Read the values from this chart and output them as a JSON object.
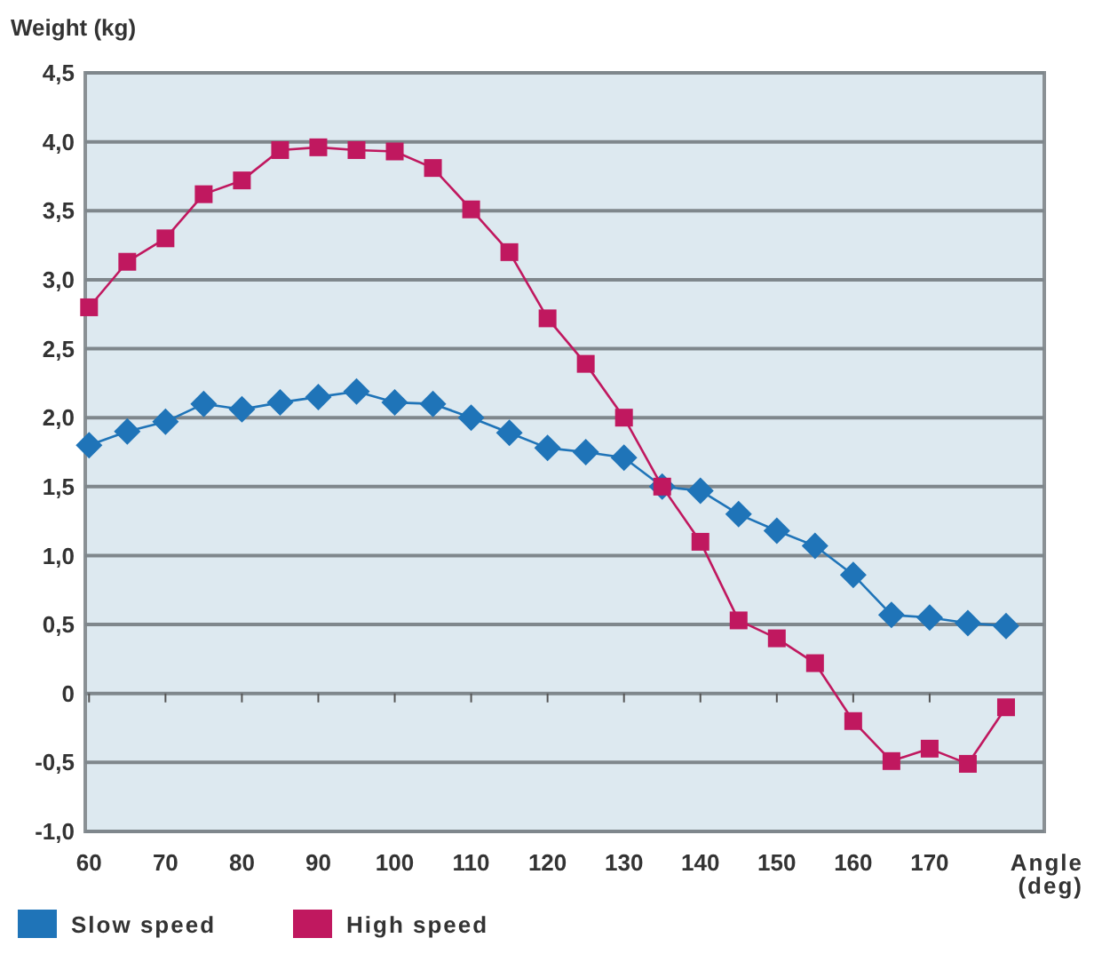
{
  "chart_data": {
    "type": "line",
    "xlabel": "Angle (deg)",
    "ylabel": "Weight (kg)",
    "x": [
      60,
      65,
      70,
      75,
      80,
      85,
      90,
      95,
      100,
      105,
      110,
      115,
      120,
      125,
      130,
      135,
      140,
      145,
      150,
      155,
      160,
      165,
      170,
      175,
      180
    ],
    "series": [
      {
        "name": "Slow speed",
        "color": "#1f74b8",
        "marker": "diamond",
        "values": [
          1.8,
          1.9,
          1.97,
          2.1,
          2.06,
          2.11,
          2.15,
          2.19,
          2.11,
          2.1,
          2.0,
          1.89,
          1.78,
          1.75,
          1.71,
          1.5,
          1.47,
          1.3,
          1.18,
          1.07,
          0.86,
          0.57,
          0.55,
          0.51,
          0.49
        ]
      },
      {
        "name": "High speed",
        "color": "#c0185f",
        "marker": "square",
        "values": [
          2.8,
          3.13,
          3.3,
          3.62,
          3.72,
          3.94,
          3.96,
          3.94,
          3.93,
          3.81,
          3.51,
          3.2,
          2.72,
          2.39,
          2.0,
          1.5,
          1.1,
          0.53,
          0.4,
          0.22,
          -0.2,
          -0.49,
          -0.4,
          -0.51,
          -0.1
        ]
      }
    ],
    "xlim": [
      59.5,
      185
    ],
    "xticks": [
      60,
      70,
      80,
      90,
      100,
      110,
      120,
      130,
      140,
      150,
      160,
      170
    ],
    "ylim": [
      -1.0,
      4.5
    ],
    "yticks": [
      {
        "value": -1.0,
        "label": "-1,0"
      },
      {
        "value": -0.5,
        "label": "-0,5"
      },
      0,
      {
        "value": 0.5,
        "label": "0,5"
      },
      {
        "value": 1.0,
        "label": "1,0"
      },
      {
        "value": 1.5,
        "label": "1,5"
      },
      {
        "value": 2.0,
        "label": "2,0"
      },
      {
        "value": 2.5,
        "label": "2,5"
      },
      {
        "value": 3.0,
        "label": "3,0"
      },
      {
        "value": 3.5,
        "label": "3,5"
      },
      {
        "value": 4.0,
        "label": "4,0"
      },
      {
        "value": 4.5,
        "label": "4,5"
      }
    ],
    "grid": "y",
    "legend": "bottom",
    "line_style": "solid"
  }
}
